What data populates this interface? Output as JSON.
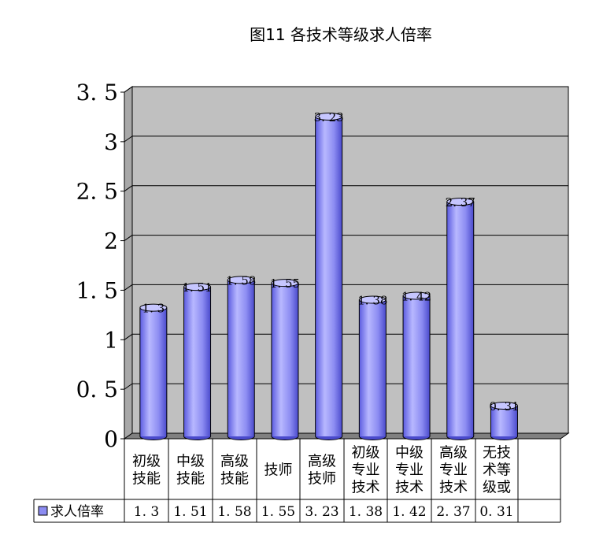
{
  "chart_data": {
    "type": "bar",
    "title": "图11  各技术等级求人倍率",
    "categories": [
      [
        "初级",
        "技能"
      ],
      [
        "中级",
        "技能"
      ],
      [
        "高级",
        "技能"
      ],
      [
        "技师"
      ],
      [
        "高级",
        "技师"
      ],
      [
        "初级",
        "专业",
        "技术"
      ],
      [
        "中级",
        "专业",
        "技术"
      ],
      [
        "高级",
        "专业",
        "技术"
      ],
      [
        "无技",
        "术等",
        "级或"
      ]
    ],
    "series": [
      {
        "name": "求人倍率",
        "values": [
          1.3,
          1.51,
          1.58,
          1.55,
          3.23,
          1.38,
          1.42,
          2.37,
          0.31
        ],
        "table_values": [
          "1.3",
          "1.51",
          "1.58",
          "1.55",
          "3.23",
          "1.38",
          "1.42",
          "2.37",
          "0.31"
        ]
      }
    ],
    "ylim": [
      0,
      3.5
    ],
    "y_ticks": [
      "0",
      "0.5",
      "1",
      "1.5",
      "2",
      "2.5",
      "3",
      "3.5"
    ],
    "grid": true,
    "legend": "data-table-left",
    "colors": {
      "bar": "#8c8cf2",
      "bar_dark": "#4a4acc",
      "bar_light": "#c6c6ff",
      "plot_bg": "#c0c0c0",
      "floor": "#808080"
    }
  }
}
